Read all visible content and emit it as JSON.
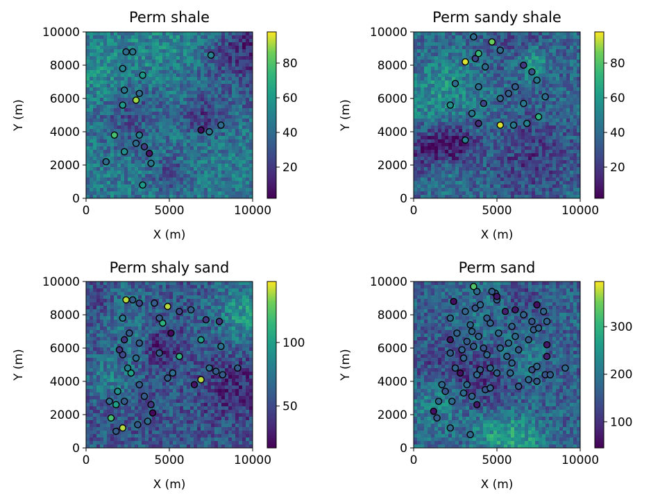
{
  "chart_data": [
    {
      "type": "heatmap",
      "title": "Perm shale",
      "xlabel": "X (m)",
      "ylabel": "Y (m)",
      "xlim": [
        0,
        10000
      ],
      "ylim": [
        10000,
        0
      ],
      "x_ticks": [
        "0",
        "5000",
        "10000"
      ],
      "y_ticks": [
        "0",
        "2000",
        "4000",
        "6000",
        "8000",
        "10000"
      ],
      "colormap": "viridis",
      "colorbar": {
        "min": 2,
        "max": 98,
        "ticks": [
          20,
          40,
          60,
          80
        ]
      },
      "wells": [
        {
          "x": 3400,
          "y": 800,
          "v": 60
        },
        {
          "x": 1200,
          "y": 2200,
          "v": 40
        },
        {
          "x": 3900,
          "y": 2100,
          "v": 45
        },
        {
          "x": 2300,
          "y": 2800,
          "v": 55
        },
        {
          "x": 3800,
          "y": 2700,
          "v": 8
        },
        {
          "x": 3000,
          "y": 3300,
          "v": 40
        },
        {
          "x": 3500,
          "y": 3100,
          "v": 22
        },
        {
          "x": 1700,
          "y": 3800,
          "v": 78
        },
        {
          "x": 3200,
          "y": 3800,
          "v": 50
        },
        {
          "x": 7400,
          "y": 4000,
          "v": 45
        },
        {
          "x": 6900,
          "y": 4100,
          "v": 5
        },
        {
          "x": 8100,
          "y": 4400,
          "v": 40
        },
        {
          "x": 2200,
          "y": 5600,
          "v": 60
        },
        {
          "x": 3000,
          "y": 5900,
          "v": 90
        },
        {
          "x": 3200,
          "y": 6300,
          "v": 40
        },
        {
          "x": 2300,
          "y": 6500,
          "v": 45
        },
        {
          "x": 3400,
          "y": 7400,
          "v": 60
        },
        {
          "x": 2200,
          "y": 7800,
          "v": 50
        },
        {
          "x": 7500,
          "y": 8600,
          "v": 50
        },
        {
          "x": 2400,
          "y": 8800,
          "v": 40
        },
        {
          "x": 2800,
          "y": 8800,
          "v": 45
        }
      ]
    },
    {
      "type": "heatmap",
      "title": "Perm sandy shale",
      "xlabel": "X (m)",
      "ylabel": "Y (m)",
      "xlim": [
        0,
        10000
      ],
      "ylim": [
        10000,
        0
      ],
      "x_ticks": [
        "0",
        "5000",
        "10000"
      ],
      "y_ticks": [
        "0",
        "2000",
        "4000",
        "6000",
        "8000",
        "10000"
      ],
      "colormap": "viridis",
      "colorbar": {
        "min": 2,
        "max": 98,
        "ticks": [
          20,
          40,
          60,
          80
        ]
      },
      "wells": [
        {
          "x": 3100,
          "y": 3500,
          "v": 50
        },
        {
          "x": 3900,
          "y": 4500,
          "v": 15
        },
        {
          "x": 5200,
          "y": 4400,
          "v": 95
        },
        {
          "x": 6000,
          "y": 4400,
          "v": 45
        },
        {
          "x": 6800,
          "y": 4500,
          "v": 50
        },
        {
          "x": 7500,
          "y": 4900,
          "v": 70
        },
        {
          "x": 3500,
          "y": 5100,
          "v": 45
        },
        {
          "x": 2200,
          "y": 5600,
          "v": 55
        },
        {
          "x": 4200,
          "y": 5700,
          "v": 25
        },
        {
          "x": 5200,
          "y": 6000,
          "v": 40
        },
        {
          "x": 5700,
          "y": 6300,
          "v": 35
        },
        {
          "x": 6600,
          "y": 5700,
          "v": 45
        },
        {
          "x": 7900,
          "y": 6100,
          "v": 40
        },
        {
          "x": 2500,
          "y": 6900,
          "v": 40
        },
        {
          "x": 3900,
          "y": 6700,
          "v": 40
        },
        {
          "x": 6100,
          "y": 6700,
          "v": 35
        },
        {
          "x": 7400,
          "y": 7100,
          "v": 45
        },
        {
          "x": 7100,
          "y": 7600,
          "v": 30
        },
        {
          "x": 6600,
          "y": 8000,
          "v": 20
        },
        {
          "x": 4300,
          "y": 7900,
          "v": 40
        },
        {
          "x": 3100,
          "y": 8200,
          "v": 95
        },
        {
          "x": 3700,
          "y": 8400,
          "v": 25
        },
        {
          "x": 3900,
          "y": 8700,
          "v": 75
        },
        {
          "x": 5200,
          "y": 8900,
          "v": 40
        },
        {
          "x": 4700,
          "y": 9400,
          "v": 85
        },
        {
          "x": 3600,
          "y": 9700,
          "v": 40
        }
      ]
    },
    {
      "type": "heatmap",
      "title": "Perm shaly sand",
      "xlabel": "X (m)",
      "ylabel": "Y (m)",
      "xlim": [
        0,
        10000
      ],
      "ylim": [
        10000,
        0
      ],
      "x_ticks": [
        "0",
        "5000",
        "10000"
      ],
      "y_ticks": [
        "0",
        "2000",
        "4000",
        "6000",
        "8000",
        "10000"
      ],
      "colormap": "viridis",
      "colorbar": {
        "min": 17,
        "max": 148,
        "ticks": [
          50,
          100
        ]
      },
      "wells": [
        {
          "x": 1800,
          "y": 1000,
          "v": 60
        },
        {
          "x": 2200,
          "y": 1200,
          "v": 140
        },
        {
          "x": 1500,
          "y": 1800,
          "v": 120
        },
        {
          "x": 3100,
          "y": 1400,
          "v": 60
        },
        {
          "x": 3700,
          "y": 1600,
          "v": 70
        },
        {
          "x": 4000,
          "y": 2100,
          "v": 20
        },
        {
          "x": 1800,
          "y": 2600,
          "v": 100
        },
        {
          "x": 2300,
          "y": 2800,
          "v": 60
        },
        {
          "x": 1400,
          "y": 2800,
          "v": 70
        },
        {
          "x": 3900,
          "y": 2600,
          "v": 40
        },
        {
          "x": 3500,
          "y": 3100,
          "v": 60
        },
        {
          "x": 1900,
          "y": 3400,
          "v": 90
        },
        {
          "x": 3200,
          "y": 3800,
          "v": 60
        },
        {
          "x": 6500,
          "y": 3800,
          "v": 25
        },
        {
          "x": 6900,
          "y": 4100,
          "v": 140
        },
        {
          "x": 4900,
          "y": 4200,
          "v": 60
        },
        {
          "x": 5200,
          "y": 4500,
          "v": 70
        },
        {
          "x": 2700,
          "y": 4500,
          "v": 100
        },
        {
          "x": 2500,
          "y": 4800,
          "v": 80
        },
        {
          "x": 7400,
          "y": 4800,
          "v": 70
        },
        {
          "x": 7800,
          "y": 4600,
          "v": 60
        },
        {
          "x": 8200,
          "y": 4400,
          "v": 60
        },
        {
          "x": 9100,
          "y": 4800,
          "v": 60
        },
        {
          "x": 3000,
          "y": 5400,
          "v": 70
        },
        {
          "x": 5600,
          "y": 5500,
          "v": 110
        },
        {
          "x": 2200,
          "y": 5600,
          "v": 50
        },
        {
          "x": 2000,
          "y": 5900,
          "v": 40
        },
        {
          "x": 4400,
          "y": 5700,
          "v": 60
        },
        {
          "x": 8100,
          "y": 6100,
          "v": 70
        },
        {
          "x": 3200,
          "y": 6300,
          "v": 60
        },
        {
          "x": 2300,
          "y": 6500,
          "v": 40
        },
        {
          "x": 6900,
          "y": 6500,
          "v": 100
        },
        {
          "x": 5100,
          "y": 6900,
          "v": 20
        },
        {
          "x": 2600,
          "y": 6900,
          "v": 60
        },
        {
          "x": 4600,
          "y": 7500,
          "v": 110
        },
        {
          "x": 4400,
          "y": 7800,
          "v": 60
        },
        {
          "x": 2200,
          "y": 7800,
          "v": 80
        },
        {
          "x": 7200,
          "y": 7700,
          "v": 40
        },
        {
          "x": 8000,
          "y": 7600,
          "v": 40
        },
        {
          "x": 5600,
          "y": 8200,
          "v": 50
        },
        {
          "x": 6300,
          "y": 8300,
          "v": 60
        },
        {
          "x": 4100,
          "y": 8700,
          "v": 60
        },
        {
          "x": 3200,
          "y": 8700,
          "v": 50
        },
        {
          "x": 4900,
          "y": 8500,
          "v": 140
        },
        {
          "x": 2800,
          "y": 8900,
          "v": 60
        },
        {
          "x": 2400,
          "y": 8900,
          "v": 140
        }
      ]
    },
    {
      "type": "heatmap",
      "title": "Perm sand",
      "xlabel": "X (m)",
      "ylabel": "Y (m)",
      "xlim": [
        0,
        10000
      ],
      "ylim": [
        10000,
        0
      ],
      "x_ticks": [
        "0",
        "5000",
        "10000"
      ],
      "y_ticks": [
        "0",
        "2000",
        "4000",
        "6000",
        "8000",
        "10000"
      ],
      "colormap": "viridis",
      "colorbar": {
        "min": 45,
        "max": 395,
        "ticks": [
          100,
          200,
          300
        ]
      },
      "wells": [
        {
          "x": 3400,
          "y": 800,
          "v": 180
        },
        {
          "x": 1400,
          "y": 1800,
          "v": 160
        },
        {
          "x": 2200,
          "y": 1200,
          "v": 180
        },
        {
          "x": 1200,
          "y": 2200,
          "v": 60
        },
        {
          "x": 1500,
          "y": 2800,
          "v": 180
        },
        {
          "x": 3800,
          "y": 2600,
          "v": 70
        },
        {
          "x": 2300,
          "y": 2800,
          "v": 180
        },
        {
          "x": 1900,
          "y": 3400,
          "v": 150
        },
        {
          "x": 1700,
          "y": 3800,
          "v": 180
        },
        {
          "x": 3000,
          "y": 3300,
          "v": 180
        },
        {
          "x": 3500,
          "y": 3100,
          "v": 170
        },
        {
          "x": 3200,
          "y": 3800,
          "v": 180
        },
        {
          "x": 4300,
          "y": 3500,
          "v": 150
        },
        {
          "x": 4600,
          "y": 3600,
          "v": 170
        },
        {
          "x": 6300,
          "y": 3700,
          "v": 160
        },
        {
          "x": 6900,
          "y": 4100,
          "v": 180
        },
        {
          "x": 7400,
          "y": 4000,
          "v": 160
        },
        {
          "x": 7900,
          "y": 4400,
          "v": 150
        },
        {
          "x": 8200,
          "y": 4400,
          "v": 160
        },
        {
          "x": 2800,
          "y": 4500,
          "v": 60
        },
        {
          "x": 3800,
          "y": 4400,
          "v": 180
        },
        {
          "x": 4000,
          "y": 4700,
          "v": 160
        },
        {
          "x": 5000,
          "y": 4500,
          "v": 170
        },
        {
          "x": 5800,
          "y": 4500,
          "v": 180
        },
        {
          "x": 7100,
          "y": 4700,
          "v": 150
        },
        {
          "x": 2500,
          "y": 4800,
          "v": 170
        },
        {
          "x": 4600,
          "y": 4800,
          "v": 180
        },
        {
          "x": 5900,
          "y": 5100,
          "v": 170
        },
        {
          "x": 7400,
          "y": 4900,
          "v": 180
        },
        {
          "x": 9100,
          "y": 4800,
          "v": 180
        },
        {
          "x": 3000,
          "y": 5400,
          "v": 170
        },
        {
          "x": 5600,
          "y": 5500,
          "v": 170
        },
        {
          "x": 4400,
          "y": 5600,
          "v": 180
        },
        {
          "x": 8000,
          "y": 5500,
          "v": 80
        },
        {
          "x": 2200,
          "y": 5700,
          "v": 160
        },
        {
          "x": 2900,
          "y": 5900,
          "v": 170
        },
        {
          "x": 5200,
          "y": 6000,
          "v": 170
        },
        {
          "x": 6300,
          "y": 5900,
          "v": 160
        },
        {
          "x": 4200,
          "y": 6000,
          "v": 150
        },
        {
          "x": 3600,
          "y": 6100,
          "v": 160
        },
        {
          "x": 5700,
          "y": 6300,
          "v": 180
        },
        {
          "x": 8000,
          "y": 6200,
          "v": 70
        },
        {
          "x": 2200,
          "y": 6500,
          "v": 60
        },
        {
          "x": 3200,
          "y": 6400,
          "v": 160
        },
        {
          "x": 6900,
          "y": 6500,
          "v": 160
        },
        {
          "x": 6100,
          "y": 6700,
          "v": 180
        },
        {
          "x": 3900,
          "y": 6700,
          "v": 170
        },
        {
          "x": 2600,
          "y": 6900,
          "v": 170
        },
        {
          "x": 3500,
          "y": 7000,
          "v": 170
        },
        {
          "x": 5100,
          "y": 6900,
          "v": 180
        },
        {
          "x": 7200,
          "y": 7100,
          "v": 160
        },
        {
          "x": 7500,
          "y": 7200,
          "v": 170
        },
        {
          "x": 4600,
          "y": 7500,
          "v": 170
        },
        {
          "x": 5900,
          "y": 7300,
          "v": 170
        },
        {
          "x": 7100,
          "y": 7600,
          "v": 150
        },
        {
          "x": 8000,
          "y": 7600,
          "v": 170
        },
        {
          "x": 3400,
          "y": 7400,
          "v": 170
        },
        {
          "x": 4400,
          "y": 7800,
          "v": 160
        },
        {
          "x": 6600,
          "y": 8000,
          "v": 170
        },
        {
          "x": 2200,
          "y": 7800,
          "v": 180
        },
        {
          "x": 5500,
          "y": 8200,
          "v": 80
        },
        {
          "x": 6100,
          "y": 8300,
          "v": 70
        },
        {
          "x": 7800,
          "y": 8200,
          "v": 170
        },
        {
          "x": 3100,
          "y": 8200,
          "v": 170
        },
        {
          "x": 3700,
          "y": 8400,
          "v": 160
        },
        {
          "x": 4000,
          "y": 8600,
          "v": 180
        },
        {
          "x": 7400,
          "y": 8600,
          "v": 60
        },
        {
          "x": 2400,
          "y": 8800,
          "v": 60
        },
        {
          "x": 5000,
          "y": 8900,
          "v": 170
        },
        {
          "x": 4900,
          "y": 9300,
          "v": 150
        },
        {
          "x": 4700,
          "y": 9400,
          "v": 160
        },
        {
          "x": 3800,
          "y": 9400,
          "v": 180
        },
        {
          "x": 3600,
          "y": 9700,
          "v": 330
        },
        {
          "x": 5000,
          "y": 9100,
          "v": 70
        }
      ]
    }
  ]
}
